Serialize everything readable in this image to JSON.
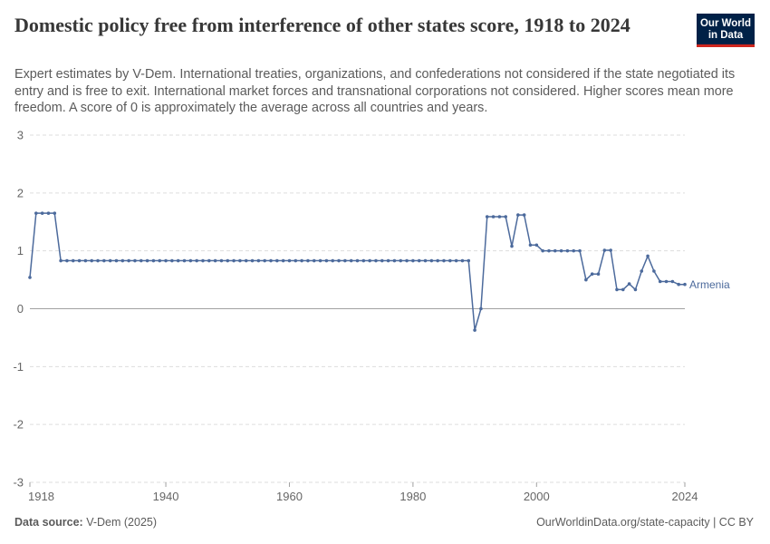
{
  "header": {
    "title": "Domestic policy free from interference of other states score, 1918 to 2024",
    "subtitle": "Expert estimates by V-Dem. International treaties, organizations, and confederations not considered if the state negotiated its entry and is free to exit. International market forces and transnational corporations not considered. Higher scores mean more freedom. A score of 0 is approximately the average across all countries and years.",
    "logo_line1": "Our World",
    "logo_line2": "in Data"
  },
  "footer": {
    "source_label": "Data source:",
    "source_value": "V-Dem (2025)",
    "url_license": "OurWorldinData.org/state-capacity | CC BY"
  },
  "colors": {
    "series": "#4c6a9c",
    "grid": "#dddddd",
    "zero_line": "#a1a1a1",
    "axis_text": "#666666"
  },
  "chart_data": {
    "type": "line",
    "xlim": [
      1918,
      2024
    ],
    "ylim": [
      -3,
      3
    ],
    "x_ticks": [
      1918,
      1940,
      1960,
      1980,
      2000,
      2024
    ],
    "y_ticks": [
      3,
      2,
      1,
      0,
      -1,
      -2,
      -3
    ],
    "grid": true,
    "legend": "end-label",
    "series": [
      {
        "name": "Armenia",
        "color": "#4c6a9c",
        "points": [
          [
            1918,
            0.54
          ],
          [
            1919,
            1.65
          ],
          [
            1920,
            1.65
          ],
          [
            1921,
            1.65
          ],
          [
            1922,
            1.65
          ],
          [
            1923,
            0.83
          ],
          [
            1924,
            0.83
          ],
          [
            1925,
            0.83
          ],
          [
            1926,
            0.83
          ],
          [
            1927,
            0.83
          ],
          [
            1928,
            0.83
          ],
          [
            1929,
            0.83
          ],
          [
            1930,
            0.83
          ],
          [
            1931,
            0.83
          ],
          [
            1932,
            0.83
          ],
          [
            1933,
            0.83
          ],
          [
            1934,
            0.83
          ],
          [
            1935,
            0.83
          ],
          [
            1936,
            0.83
          ],
          [
            1937,
            0.83
          ],
          [
            1938,
            0.83
          ],
          [
            1939,
            0.83
          ],
          [
            1940,
            0.83
          ],
          [
            1941,
            0.83
          ],
          [
            1942,
            0.83
          ],
          [
            1943,
            0.83
          ],
          [
            1944,
            0.83
          ],
          [
            1945,
            0.83
          ],
          [
            1946,
            0.83
          ],
          [
            1947,
            0.83
          ],
          [
            1948,
            0.83
          ],
          [
            1949,
            0.83
          ],
          [
            1950,
            0.83
          ],
          [
            1951,
            0.83
          ],
          [
            1952,
            0.83
          ],
          [
            1953,
            0.83
          ],
          [
            1954,
            0.83
          ],
          [
            1955,
            0.83
          ],
          [
            1956,
            0.83
          ],
          [
            1957,
            0.83
          ],
          [
            1958,
            0.83
          ],
          [
            1959,
            0.83
          ],
          [
            1960,
            0.83
          ],
          [
            1961,
            0.83
          ],
          [
            1962,
            0.83
          ],
          [
            1963,
            0.83
          ],
          [
            1964,
            0.83
          ],
          [
            1965,
            0.83
          ],
          [
            1966,
            0.83
          ],
          [
            1967,
            0.83
          ],
          [
            1968,
            0.83
          ],
          [
            1969,
            0.83
          ],
          [
            1970,
            0.83
          ],
          [
            1971,
            0.83
          ],
          [
            1972,
            0.83
          ],
          [
            1973,
            0.83
          ],
          [
            1974,
            0.83
          ],
          [
            1975,
            0.83
          ],
          [
            1976,
            0.83
          ],
          [
            1977,
            0.83
          ],
          [
            1978,
            0.83
          ],
          [
            1979,
            0.83
          ],
          [
            1980,
            0.83
          ],
          [
            1981,
            0.83
          ],
          [
            1982,
            0.83
          ],
          [
            1983,
            0.83
          ],
          [
            1984,
            0.83
          ],
          [
            1985,
            0.83
          ],
          [
            1986,
            0.83
          ],
          [
            1987,
            0.83
          ],
          [
            1988,
            0.83
          ],
          [
            1989,
            0.83
          ],
          [
            1990,
            -0.37
          ],
          [
            1991,
            0.0
          ],
          [
            1992,
            1.59
          ],
          [
            1993,
            1.59
          ],
          [
            1994,
            1.59
          ],
          [
            1995,
            1.59
          ],
          [
            1996,
            1.08
          ],
          [
            1997,
            1.62
          ],
          [
            1998,
            1.62
          ],
          [
            1999,
            1.1
          ],
          [
            2000,
            1.1
          ],
          [
            2001,
            1.0
          ],
          [
            2002,
            1.0
          ],
          [
            2003,
            1.0
          ],
          [
            2004,
            1.0
          ],
          [
            2005,
            1.0
          ],
          [
            2006,
            1.0
          ],
          [
            2007,
            1.0
          ],
          [
            2008,
            0.5
          ],
          [
            2009,
            0.6
          ],
          [
            2010,
            0.6
          ],
          [
            2011,
            1.01
          ],
          [
            2012,
            1.01
          ],
          [
            2013,
            0.33
          ],
          [
            2014,
            0.33
          ],
          [
            2015,
            0.43
          ],
          [
            2016,
            0.33
          ],
          [
            2017,
            0.65
          ],
          [
            2018,
            0.91
          ],
          [
            2019,
            0.65
          ],
          [
            2020,
            0.47
          ],
          [
            2021,
            0.47
          ],
          [
            2022,
            0.47
          ],
          [
            2023,
            0.42
          ],
          [
            2024,
            0.42
          ]
        ]
      }
    ]
  }
}
